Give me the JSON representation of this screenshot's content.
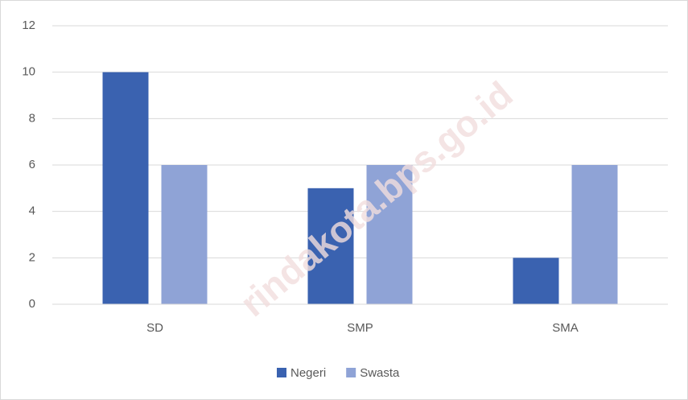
{
  "chart_data": {
    "type": "bar",
    "categories": [
      "SD",
      "SMP",
      "SMA"
    ],
    "series": [
      {
        "name": "Negeri",
        "color": "#3a62b0",
        "values": [
          10,
          5,
          2
        ]
      },
      {
        "name": "Swasta",
        "color": "#8fa3d6",
        "values": [
          6,
          6,
          6
        ]
      }
    ],
    "ylim": [
      0,
      12
    ],
    "yticks": [
      0,
      2,
      4,
      6,
      8,
      10,
      12
    ],
    "grid": true,
    "legend": "bottom",
    "watermark": "rindakota.bps.go.id"
  }
}
